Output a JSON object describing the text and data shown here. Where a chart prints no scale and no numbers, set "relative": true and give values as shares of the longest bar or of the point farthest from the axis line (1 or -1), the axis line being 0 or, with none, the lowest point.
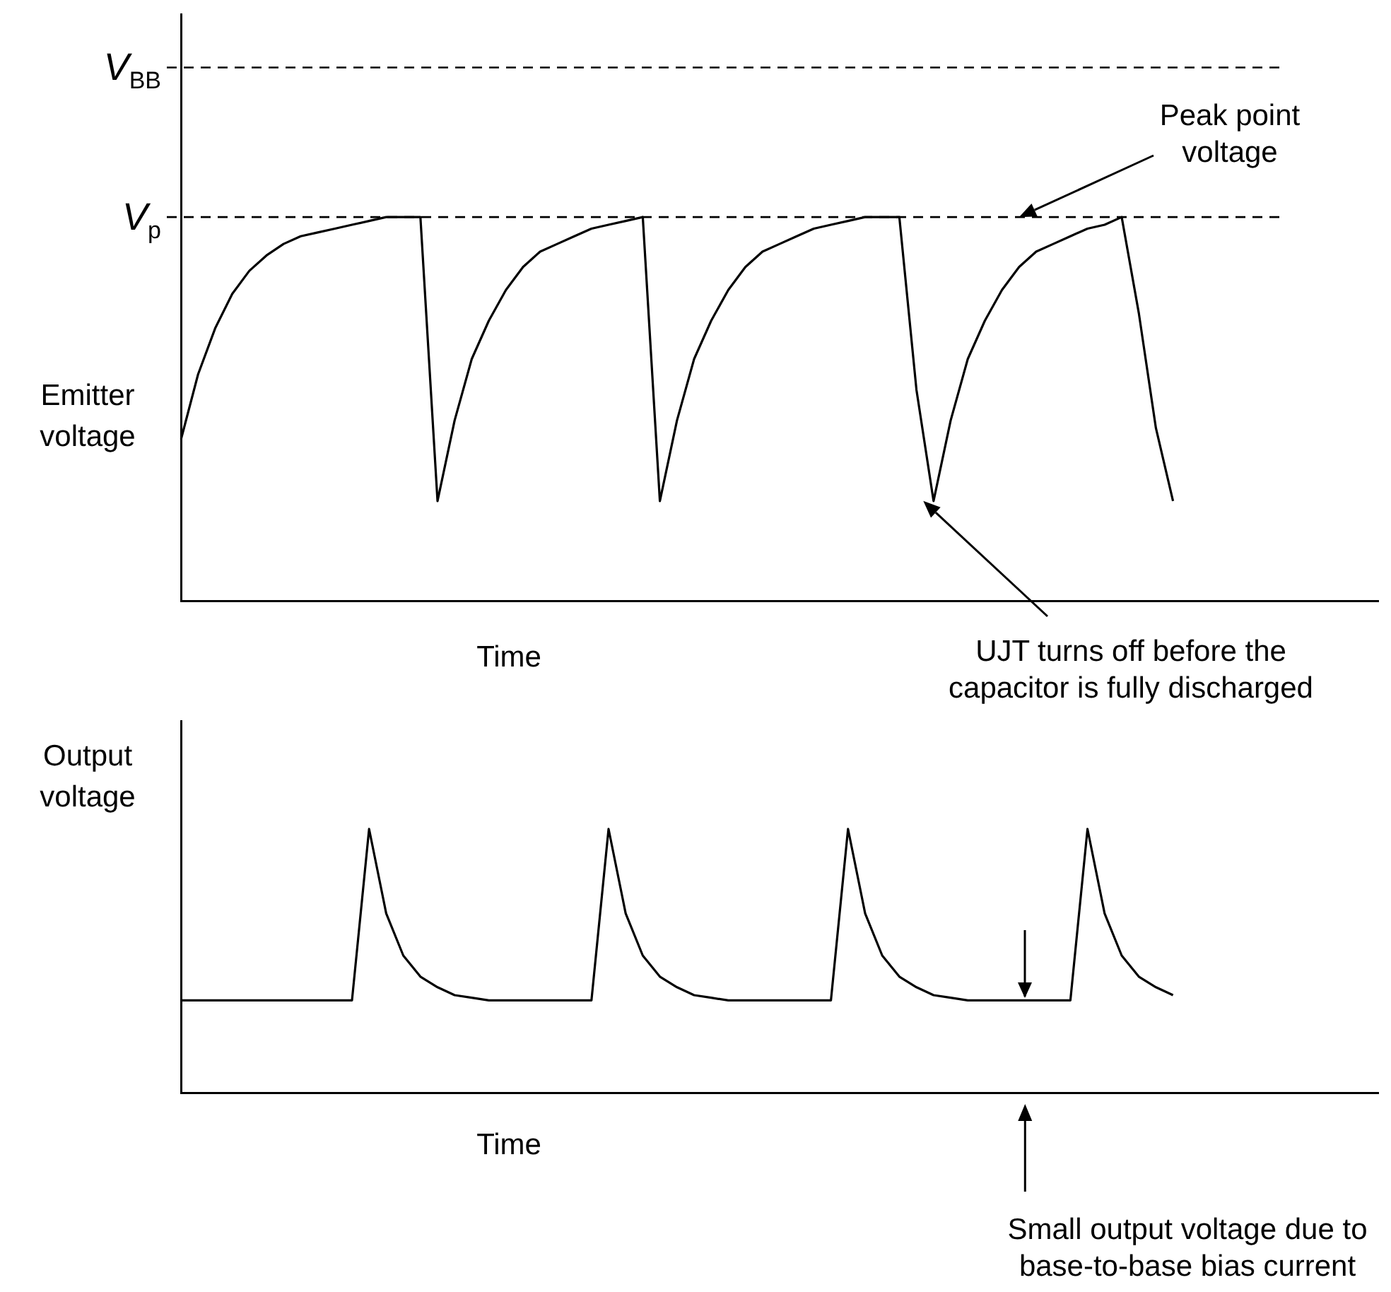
{
  "chart_data": [
    {
      "type": "line",
      "relative": true,
      "ylabel": "Emitter voltage",
      "xlabel": "Time",
      "categories": [
        null,
        null,
        null,
        null,
        null,
        null,
        null,
        null,
        null,
        null,
        null,
        null,
        null,
        null,
        null,
        null,
        null,
        null,
        null,
        null,
        null,
        null,
        null,
        null,
        null,
        null,
        null,
        null,
        null,
        null,
        null,
        null,
        null,
        null,
        null,
        null,
        null,
        null,
        null,
        null,
        null,
        null,
        null,
        null,
        null,
        null,
        null,
        null,
        null,
        null,
        null,
        null,
        null,
        null,
        null,
        null,
        null,
        null,
        null,
        null,
        null,
        null,
        null,
        null,
        null,
        null,
        null,
        null,
        null,
        null,
        null
      ],
      "series": [
        {
          "color": "#000000",
          "values": [
            0.42,
            0.59,
            0.71,
            0.8,
            0.86,
            0.9,
            0.93,
            0.95,
            0.96,
            0.97,
            0.98,
            0.99,
            1,
            1,
            1,
            0.26,
            0.47,
            0.63,
            0.73,
            0.81,
            0.87,
            0.91,
            0.93,
            0.95,
            0.97,
            0.98,
            0.99,
            1,
            0.26,
            0.47,
            0.63,
            0.73,
            0.81,
            0.87,
            0.91,
            0.93,
            0.95,
            0.97,
            0.98,
            0.99,
            1,
            1,
            1,
            0.55,
            0.26,
            0.47,
            0.63,
            0.73,
            0.81,
            0.87,
            0.91,
            0.93,
            0.95,
            0.97,
            0.98,
            1,
            0.75,
            0.45,
            0.26,
            null,
            null,
            null,
            null,
            null,
            null,
            null,
            null,
            null,
            null,
            null,
            null
          ]
        }
      ],
      "ref_lines": [
        {
          "axis": "y",
          "value": 1.39,
          "label": "V$_{BB}$",
          "line_style": "dashed"
        },
        {
          "axis": "y",
          "value": 1,
          "label": "V$_{p}$",
          "line_style": "dashed"
        }
      ],
      "annotations": [
        "Peak point voltage",
        "UJT turns off before the capacitor is fully discharged"
      ]
    },
    {
      "type": "line",
      "relative": true,
      "ylabel": "Output voltage",
      "xlabel": "Time",
      "categories": [
        null,
        null,
        null,
        null,
        null,
        null,
        null,
        null,
        null,
        null,
        null,
        null,
        null,
        null,
        null,
        null,
        null,
        null,
        null,
        null,
        null,
        null,
        null,
        null,
        null,
        null,
        null,
        null,
        null,
        null,
        null,
        null,
        null,
        null,
        null,
        null,
        null,
        null,
        null,
        null,
        null,
        null,
        null,
        null,
        null,
        null,
        null,
        null,
        null,
        null,
        null,
        null,
        null,
        null,
        null,
        null,
        null,
        null,
        null,
        null,
        null,
        null,
        null,
        null,
        null,
        null,
        null,
        null,
        null,
        null,
        null
      ],
      "series": [
        {
          "color": "#000000",
          "values": [
            0.35,
            0.35,
            0.35,
            0.35,
            0.35,
            0.35,
            0.35,
            0.35,
            0.35,
            0.35,
            0.35,
            1,
            0.68,
            0.52,
            0.44,
            0.4,
            0.37,
            0.36,
            0.35,
            0.35,
            0.35,
            0.35,
            0.35,
            0.35,
            0.35,
            1,
            0.68,
            0.52,
            0.44,
            0.4,
            0.37,
            0.36,
            0.35,
            0.35,
            0.35,
            0.35,
            0.35,
            0.35,
            0.35,
            1,
            0.68,
            0.52,
            0.44,
            0.4,
            0.37,
            0.36,
            0.35,
            0.35,
            0.35,
            0.35,
            0.35,
            0.35,
            0.35,
            1,
            0.68,
            0.52,
            0.44,
            0.4,
            0.37,
            null,
            null,
            null,
            null,
            null,
            null,
            null,
            null,
            null,
            null,
            null,
            null
          ]
        }
      ],
      "annotations": [
        "Small output voltage due to base-to-base bias current"
      ]
    }
  ]
}
